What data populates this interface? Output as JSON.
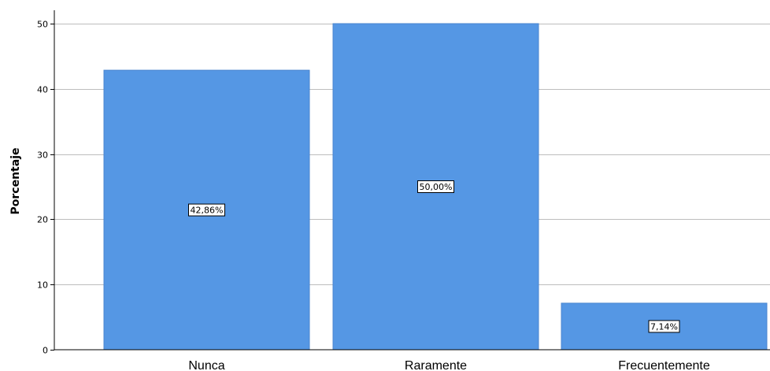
{
  "chart_data": {
    "type": "bar",
    "categories": [
      "Nunca",
      "Raramente",
      "Frecuentemente"
    ],
    "values": [
      42.86,
      50.0,
      7.14
    ],
    "data_labels": [
      "42,86%",
      "50,00%",
      "7,14%"
    ],
    "ylabel": "Porcentaje",
    "ylim": [
      0,
      50
    ],
    "yticks": [
      0,
      10,
      20,
      30,
      40,
      50
    ],
    "grid": true,
    "bar_color": "#5597e4"
  }
}
